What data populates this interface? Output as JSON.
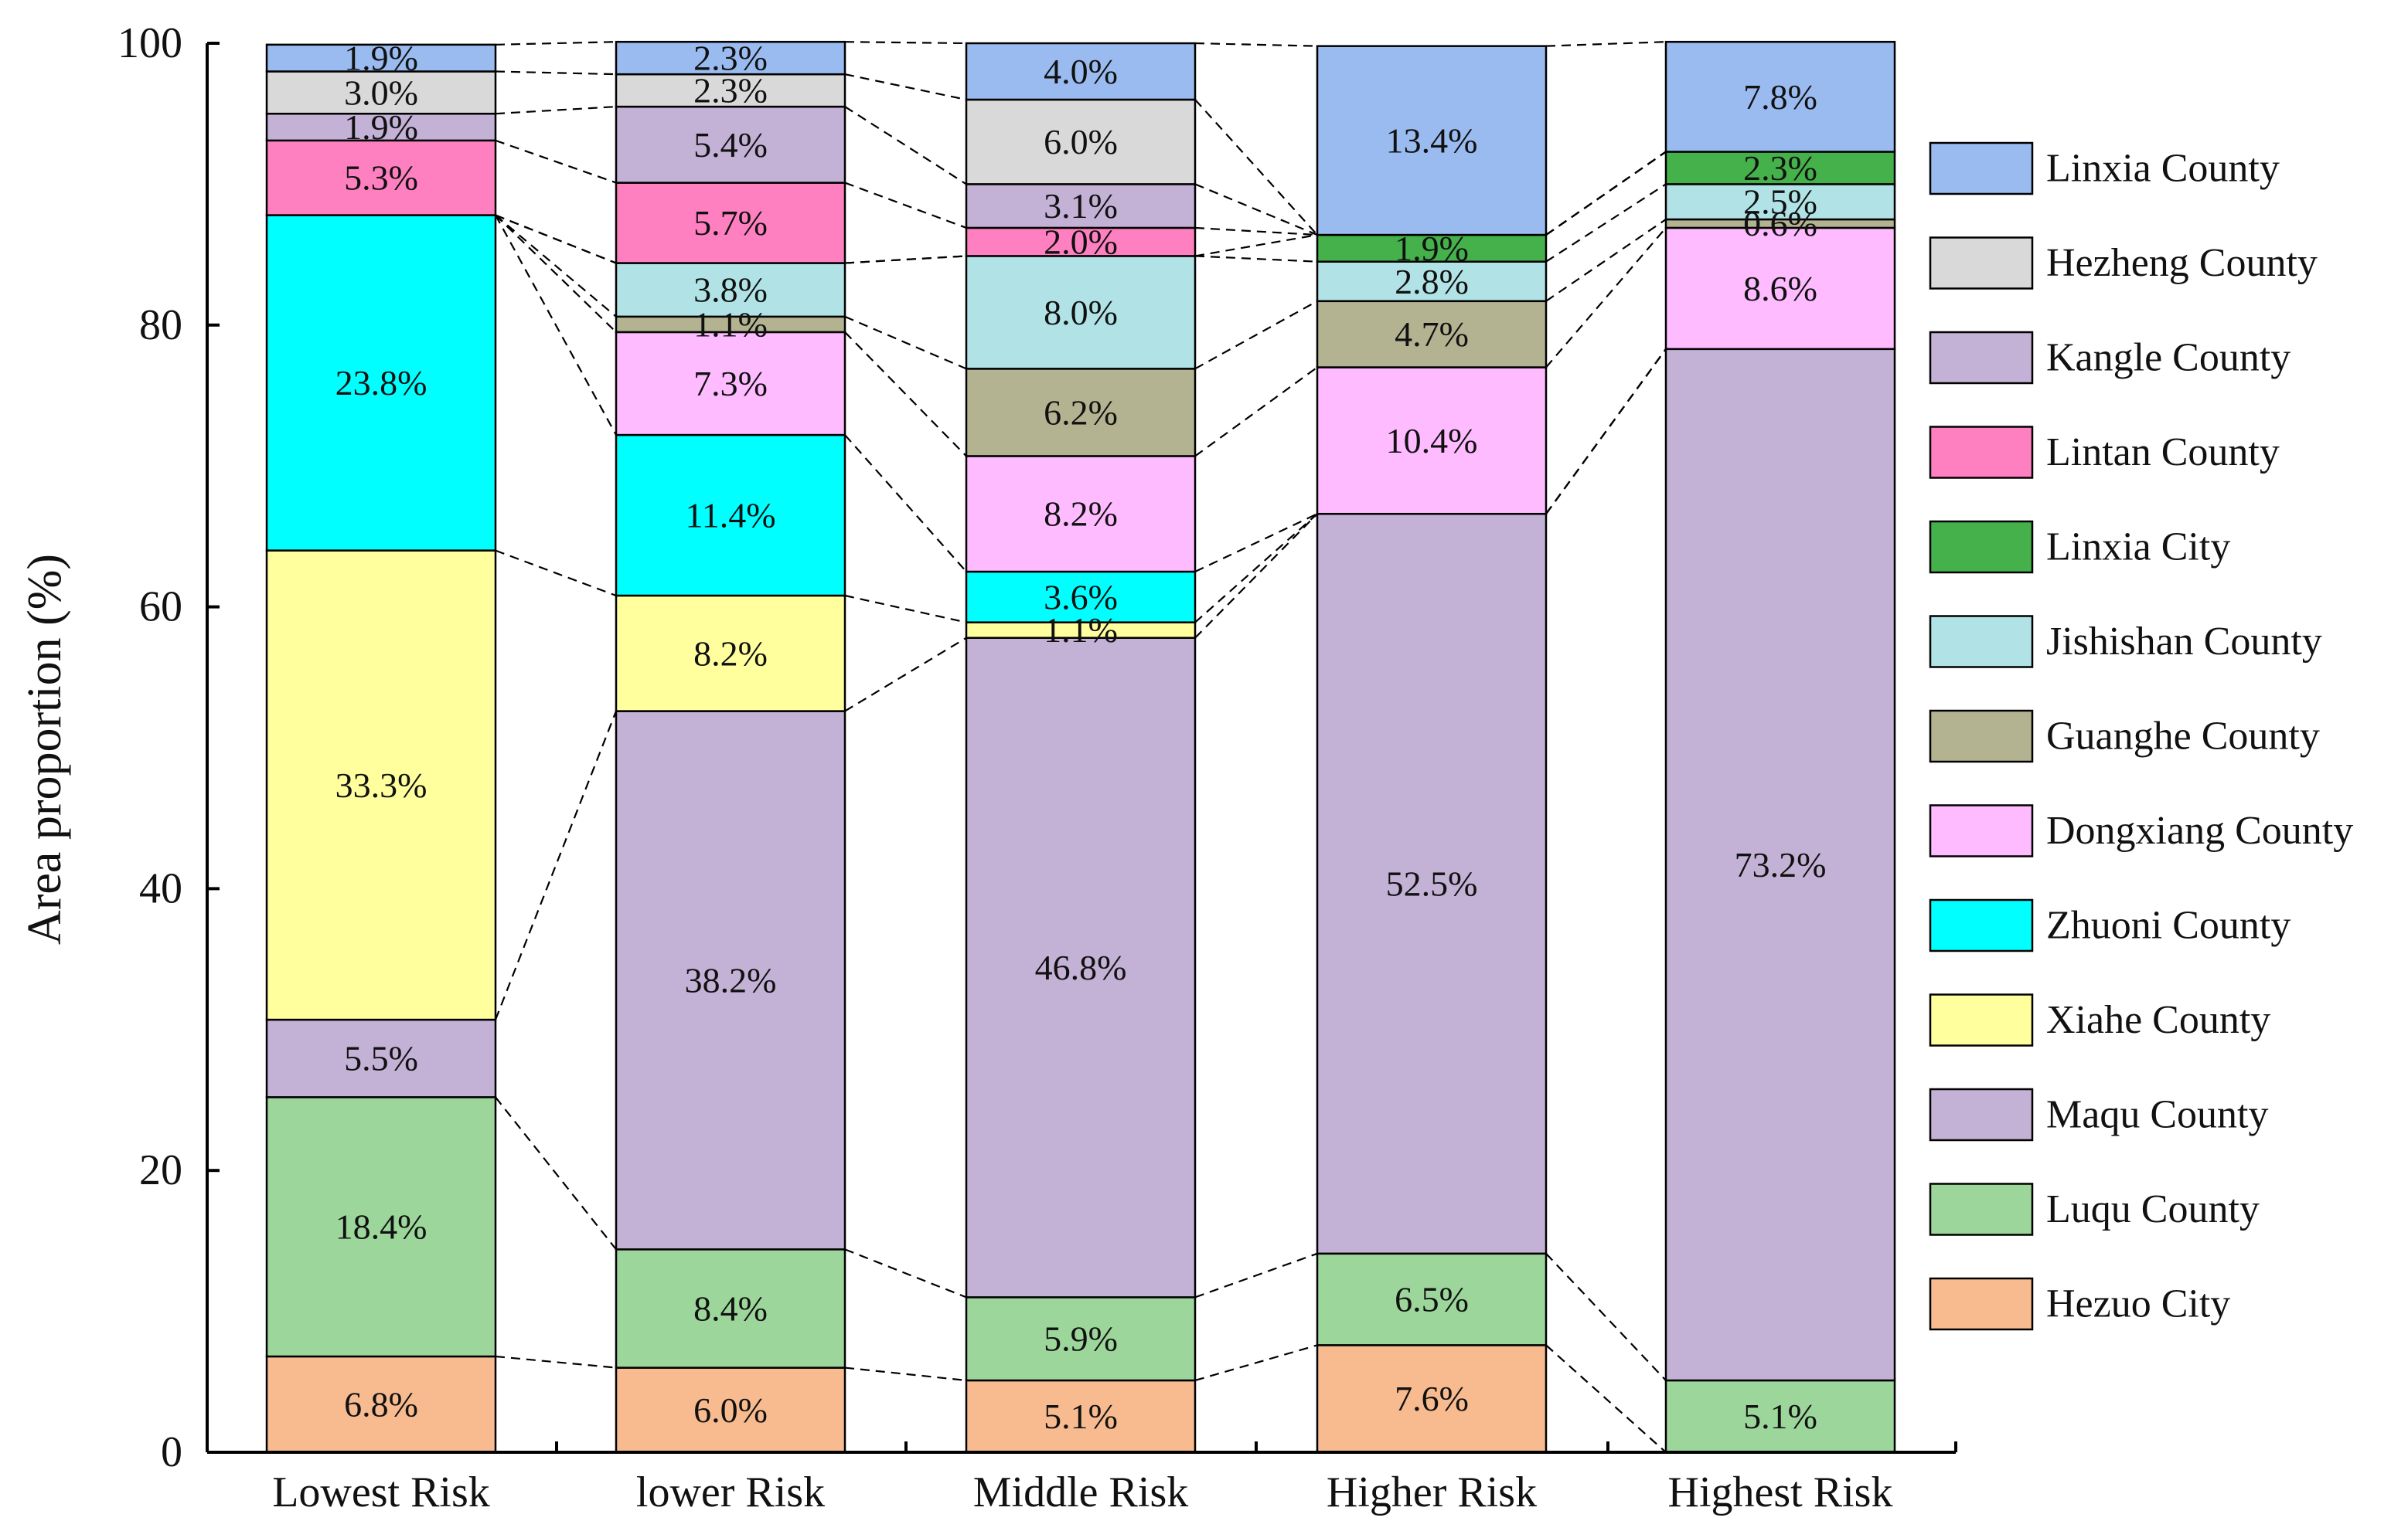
{
  "chart_data": {
    "type": "bar",
    "stacked": true,
    "categories": [
      "Lowest Risk",
      "lower Risk",
      "Middle Risk",
      "Higher Risk",
      "Highest Risk"
    ],
    "ylabel": "Area proportion (%)",
    "xlabel": "",
    "ylim": [
      0,
      100
    ],
    "yticks": [
      0,
      20,
      40,
      60,
      80,
      100
    ],
    "grid": false,
    "legend_position": "right",
    "series": [
      {
        "name": "Hezuo City",
        "color": "#F7BB8F",
        "values": [
          6.8,
          6.0,
          5.1,
          7.6,
          0.0
        ],
        "labels": [
          "6.8%",
          "6.0%",
          "5.1%",
          "7.6%",
          ""
        ]
      },
      {
        "name": "Luqu County",
        "color": "#9CD69B",
        "values": [
          18.4,
          8.4,
          5.9,
          6.5,
          5.1
        ],
        "labels": [
          "18.4%",
          "8.4%",
          "5.9%",
          "6.5%",
          "5.1%"
        ]
      },
      {
        "name": "Maqu County",
        "color": "#C4B1D6",
        "values": [
          5.5,
          38.2,
          46.8,
          52.5,
          73.2
        ],
        "labels": [
          "5.5%",
          "38.2%",
          "46.8%",
          "52.5%",
          "73.2%"
        ]
      },
      {
        "name": "Xiahe County",
        "color": "#FFFF9E",
        "values": [
          33.3,
          8.2,
          1.1,
          0.0,
          0.0
        ],
        "labels": [
          "33.3%",
          "8.2%",
          "1.1%",
          "",
          ""
        ]
      },
      {
        "name": "Zhuoni County",
        "color": "#00FFFF",
        "values": [
          23.8,
          11.4,
          3.6,
          0.0,
          0.0
        ],
        "labels": [
          "23.8%",
          "11.4%",
          "3.6%",
          "",
          ""
        ]
      },
      {
        "name": "Dongxiang County",
        "color": "#FFBBFF",
        "values": [
          0.0,
          7.3,
          8.2,
          10.4,
          8.6
        ],
        "labels": [
          "",
          "7.3%",
          "8.2%",
          "10.4%",
          "8.6%"
        ]
      },
      {
        "name": "Guanghe County",
        "color": "#B3B392",
        "values": [
          0.0,
          1.1,
          6.2,
          4.7,
          0.6
        ],
        "labels": [
          "",
          "1.1%",
          "6.2%",
          "4.7%",
          "0.6%"
        ]
      },
      {
        "name": "Jishishan County",
        "color": "#B1E3E6",
        "values": [
          0.0,
          3.8,
          8.0,
          2.8,
          2.5
        ],
        "labels": [
          "",
          "3.8%",
          "8.0%",
          "2.8%",
          "2.5%"
        ]
      },
      {
        "name": "Linxia City",
        "color": "#44B14A",
        "values": [
          0.0,
          0.0,
          0.0,
          1.9,
          2.3
        ],
        "labels": [
          "",
          "",
          "",
          "1.9%",
          "2.3%"
        ]
      },
      {
        "name": "Lintan County",
        "color": "#FF80C0",
        "values": [
          5.3,
          5.7,
          2.0,
          0.0,
          0.0
        ],
        "labels": [
          "5.3%",
          "5.7%",
          "2.0%",
          "",
          ""
        ]
      },
      {
        "name": "Kangle County",
        "color": "#C4B1D6",
        "values": [
          1.9,
          5.4,
          3.1,
          0.0,
          0.0
        ],
        "labels": [
          "1.9%",
          "5.4%",
          "3.1%",
          "",
          ""
        ]
      },
      {
        "name": "Hezheng County",
        "color": "#D9D9D9",
        "values": [
          3.0,
          2.3,
          6.0,
          0.0,
          0.0
        ],
        "labels": [
          "3.0%",
          "2.3%",
          "6.0%",
          "",
          ""
        ]
      },
      {
        "name": "Linxia County",
        "color": "#9ABBF0",
        "values": [
          1.9,
          2.3,
          4.0,
          13.4,
          7.8
        ],
        "labels": [
          "1.9%",
          "2.3%",
          "4.0%",
          "13.4%",
          "7.8%"
        ]
      }
    ],
    "legend_order": [
      "Linxia County",
      "Hezheng County",
      "Kangle County",
      "Lintan County",
      "Linxia City",
      "Jishishan County",
      "Guanghe County",
      "Dongxiang County",
      "Zhuoni County",
      "Xiahe County",
      "Maqu County",
      "Luqu County",
      "Hezuo City"
    ]
  }
}
